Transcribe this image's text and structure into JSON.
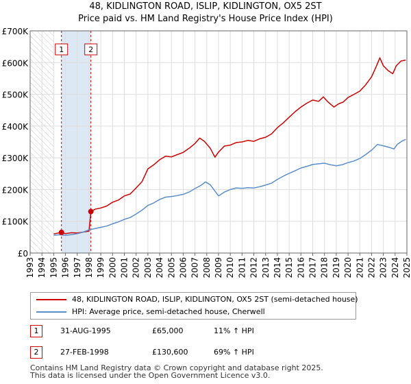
{
  "title_line1": "48, KIDLINGTON ROAD, ISLIP, KIDLINGTON, OX5 2ST",
  "title_line2": "Price paid vs. HM Land Registry's House Price Index (HPI)",
  "chart_data": {
    "type": "line",
    "title": "48, KIDLINGTON ROAD, ISLIP, KIDLINGTON, OX5 2ST — Price paid vs. HM Land Registry's House Price Index (HPI)",
    "xlim": [
      1993,
      2025
    ],
    "ylim": [
      0,
      700000
    ],
    "x_ticks": [
      1993,
      1994,
      1995,
      1996,
      1997,
      1998,
      1999,
      2000,
      2001,
      2002,
      2003,
      2004,
      2005,
      2006,
      2007,
      2008,
      2009,
      2010,
      2011,
      2012,
      2013,
      2014,
      2015,
      2016,
      2017,
      2018,
      2019,
      2020,
      2021,
      2022,
      2023,
      2024,
      2025
    ],
    "y_ticks": [
      {
        "value": 0,
        "label": "£0"
      },
      {
        "value": 100000,
        "label": "£100K"
      },
      {
        "value": 200000,
        "label": "£200K"
      },
      {
        "value": 300000,
        "label": "£300K"
      },
      {
        "value": 400000,
        "label": "£400K"
      },
      {
        "value": 500000,
        "label": "£500K"
      },
      {
        "value": 600000,
        "label": "£600K"
      },
      {
        "value": 700000,
        "label": "£700K"
      }
    ],
    "grid": true,
    "hatched_region": [
      1993,
      1995.0
    ],
    "shaded_region": [
      1995.66,
      1998.16
    ],
    "series": [
      {
        "name": "48, KIDLINGTON ROAD, ISLIP, KIDLINGTON, OX5 2ST (semi-detached house)",
        "color": "#cc0000",
        "points": [
          [
            1995.0,
            60000
          ],
          [
            1995.66,
            65000
          ],
          [
            1996.0,
            61000
          ],
          [
            1996.5,
            64000
          ],
          [
            1997.0,
            63000
          ],
          [
            1997.5,
            66000
          ],
          [
            1998.0,
            69000
          ],
          [
            1998.16,
            130600
          ],
          [
            1998.5,
            138000
          ],
          [
            1999.0,
            142000
          ],
          [
            1999.5,
            148000
          ],
          [
            2000.0,
            160000
          ],
          [
            2000.5,
            167000
          ],
          [
            2001.0,
            180000
          ],
          [
            2001.5,
            186000
          ],
          [
            2002.0,
            205000
          ],
          [
            2002.5,
            225000
          ],
          [
            2003.0,
            265000
          ],
          [
            2003.5,
            278000
          ],
          [
            2004.0,
            294000
          ],
          [
            2004.5,
            305000
          ],
          [
            2005.0,
            303000
          ],
          [
            2005.5,
            310000
          ],
          [
            2006.0,
            317000
          ],
          [
            2006.5,
            330000
          ],
          [
            2007.0,
            345000
          ],
          [
            2007.4,
            362000
          ],
          [
            2007.8,
            352000
          ],
          [
            2008.3,
            330000
          ],
          [
            2008.7,
            302000
          ],
          [
            2009.0,
            318000
          ],
          [
            2009.5,
            337000
          ],
          [
            2010.0,
            340000
          ],
          [
            2010.5,
            348000
          ],
          [
            2011.0,
            350000
          ],
          [
            2011.5,
            355000
          ],
          [
            2012.0,
            352000
          ],
          [
            2012.5,
            360000
          ],
          [
            2013.0,
            365000
          ],
          [
            2013.5,
            375000
          ],
          [
            2014.0,
            395000
          ],
          [
            2014.5,
            410000
          ],
          [
            2015.0,
            428000
          ],
          [
            2015.5,
            445000
          ],
          [
            2016.0,
            460000
          ],
          [
            2016.5,
            472000
          ],
          [
            2017.0,
            482000
          ],
          [
            2017.5,
            478000
          ],
          [
            2017.9,
            492000
          ],
          [
            2018.3,
            476000
          ],
          [
            2018.8,
            460000
          ],
          [
            2019.2,
            470000
          ],
          [
            2019.6,
            476000
          ],
          [
            2020.0,
            490000
          ],
          [
            2020.5,
            500000
          ],
          [
            2021.0,
            510000
          ],
          [
            2021.5,
            530000
          ],
          [
            2022.0,
            555000
          ],
          [
            2022.4,
            588000
          ],
          [
            2022.7,
            615000
          ],
          [
            2023.0,
            590000
          ],
          [
            2023.4,
            575000
          ],
          [
            2023.8,
            565000
          ],
          [
            2024.1,
            590000
          ],
          [
            2024.5,
            605000
          ],
          [
            2024.9,
            608000
          ]
        ]
      },
      {
        "name": "HPI: Average price, semi-detached house, Cherwell",
        "color": "#5b8ec9",
        "points": [
          [
            1995.0,
            56000
          ],
          [
            1995.5,
            57500
          ],
          [
            1996.0,
            56000
          ],
          [
            1996.5,
            58000
          ],
          [
            1997.0,
            61000
          ],
          [
            1997.5,
            66000
          ],
          [
            1998.0,
            73000
          ],
          [
            1998.5,
            77000
          ],
          [
            1999.0,
            81000
          ],
          [
            1999.5,
            85000
          ],
          [
            2000.0,
            92000
          ],
          [
            2000.5,
            98000
          ],
          [
            2001.0,
            106000
          ],
          [
            2001.5,
            112000
          ],
          [
            2002.0,
            123000
          ],
          [
            2002.5,
            135000
          ],
          [
            2003.0,
            150000
          ],
          [
            2003.5,
            158000
          ],
          [
            2004.0,
            169000
          ],
          [
            2004.5,
            176000
          ],
          [
            2005.0,
            178000
          ],
          [
            2005.5,
            181000
          ],
          [
            2006.0,
            185000
          ],
          [
            2006.5,
            192000
          ],
          [
            2007.0,
            203000
          ],
          [
            2007.5,
            213000
          ],
          [
            2007.9,
            224000
          ],
          [
            2008.3,
            215000
          ],
          [
            2008.7,
            195000
          ],
          [
            2009.0,
            180000
          ],
          [
            2009.5,
            192000
          ],
          [
            2010.0,
            200000
          ],
          [
            2010.5,
            205000
          ],
          [
            2011.0,
            204000
          ],
          [
            2011.5,
            206000
          ],
          [
            2012.0,
            205000
          ],
          [
            2012.5,
            209000
          ],
          [
            2013.0,
            214000
          ],
          [
            2013.5,
            220000
          ],
          [
            2014.0,
            232000
          ],
          [
            2014.5,
            242000
          ],
          [
            2015.0,
            251000
          ],
          [
            2015.5,
            259000
          ],
          [
            2016.0,
            268000
          ],
          [
            2016.5,
            273000
          ],
          [
            2017.0,
            279000
          ],
          [
            2017.5,
            281000
          ],
          [
            2018.0,
            283000
          ],
          [
            2018.5,
            278000
          ],
          [
            2019.0,
            275000
          ],
          [
            2019.5,
            278000
          ],
          [
            2020.0,
            285000
          ],
          [
            2020.5,
            290000
          ],
          [
            2021.0,
            298000
          ],
          [
            2021.5,
            310000
          ],
          [
            2022.0,
            324000
          ],
          [
            2022.5,
            342000
          ],
          [
            2023.0,
            338000
          ],
          [
            2023.5,
            333000
          ],
          [
            2023.9,
            328000
          ],
          [
            2024.2,
            343000
          ],
          [
            2024.6,
            353000
          ],
          [
            2024.9,
            358000
          ]
        ]
      }
    ],
    "markers": [
      {
        "label": "1",
        "x": 1995.66,
        "y": 65000
      },
      {
        "label": "2",
        "x": 1998.16,
        "y": 130600
      }
    ]
  },
  "legend": {
    "property_label": "48, KIDLINGTON ROAD, ISLIP, KIDLINGTON, OX5 2ST (semi-detached house)",
    "hpi_label": "HPI: Average price, semi-detached house, Cherwell"
  },
  "sales": [
    {
      "num": "1",
      "date": "31-AUG-1995",
      "price": "£65,000",
      "hpi": "11% ↑ HPI"
    },
    {
      "num": "2",
      "date": "27-FEB-1998",
      "price": "£130,600",
      "hpi": "69% ↑ HPI"
    }
  ],
  "footer": {
    "line1": "Contains HM Land Registry data © Crown copyright and database right 2025.",
    "line2": "This data is licensed under the Open Government Licence v3.0."
  },
  "colors": {
    "property": "#cc0000",
    "hpi": "#5b8ec9",
    "grid": "#dddddd",
    "shaded": "#dde8f5"
  }
}
